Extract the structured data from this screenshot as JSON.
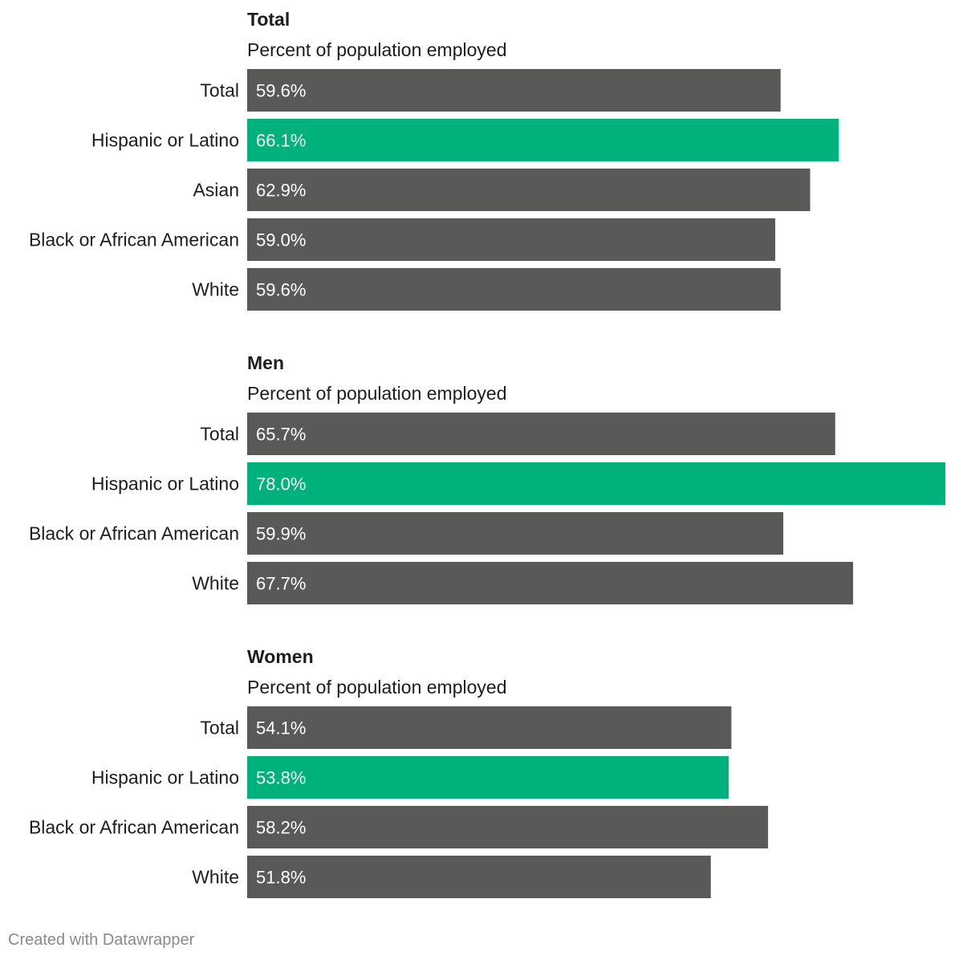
{
  "chart_data": [
    {
      "type": "bar",
      "orientation": "horizontal",
      "title": "Total",
      "subtitle": "Percent of population employed",
      "categories": [
        "Total",
        "Hispanic or Latino",
        "Asian",
        "Black or African American",
        "White"
      ],
      "values": [
        59.6,
        66.1,
        62.9,
        59.0,
        59.6
      ],
      "value_labels": [
        "59.6%",
        "66.1%",
        "62.9%",
        "59.0%",
        "59.6%"
      ],
      "highlight": [
        false,
        true,
        false,
        false,
        false
      ],
      "xlim": [
        0,
        78
      ]
    },
    {
      "type": "bar",
      "orientation": "horizontal",
      "title": "Men",
      "subtitle": "Percent of population employed",
      "categories": [
        "Total",
        "Hispanic or Latino",
        "Black or African American",
        "White"
      ],
      "values": [
        65.7,
        78.0,
        59.9,
        67.7
      ],
      "value_labels": [
        "65.7%",
        "78.0%",
        "59.9%",
        "67.7%"
      ],
      "highlight": [
        false,
        true,
        false,
        false
      ],
      "xlim": [
        0,
        78
      ]
    },
    {
      "type": "bar",
      "orientation": "horizontal",
      "title": "Women",
      "subtitle": "Percent of population employed",
      "categories": [
        "Total",
        "Hispanic or Latino",
        "Black or African American",
        "White"
      ],
      "values": [
        54.1,
        53.8,
        58.2,
        51.8
      ],
      "value_labels": [
        "54.1%",
        "53.8%",
        "58.2%",
        "51.8%"
      ],
      "highlight": [
        false,
        true,
        false,
        false
      ],
      "xlim": [
        0,
        78
      ]
    }
  ],
  "colors": {
    "bar_default": "#595957",
    "bar_highlight": "#00b17c"
  },
  "footer": {
    "credit": "Created with Datawrapper"
  }
}
